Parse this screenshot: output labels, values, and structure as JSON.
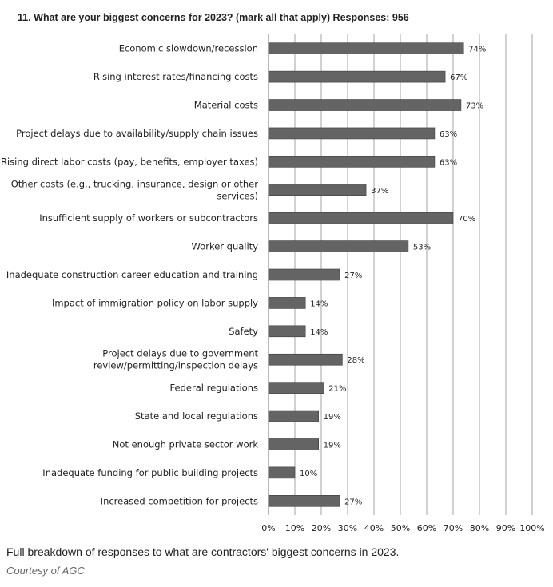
{
  "chart_data": {
    "type": "bar",
    "orientation": "horizontal",
    "title": "11.  What are your biggest concerns for 2023? (mark all that apply) Responses: 956",
    "categories": [
      [
        "Economic slowdown/recession"
      ],
      [
        "Rising interest rates/financing costs"
      ],
      [
        "Material costs"
      ],
      [
        "Project delays due to availability/supply chain issues"
      ],
      [
        "Rising direct labor costs (pay, benefits, employer taxes)"
      ],
      [
        "Other costs (e.g., trucking, insurance, design or other",
        "services)"
      ],
      [
        "Insufficient supply of workers or subcontractors"
      ],
      [
        "Worker quality"
      ],
      [
        "Inadequate construction career education and training"
      ],
      [
        "Impact of immigration policy on labor supply"
      ],
      [
        "Safety"
      ],
      [
        "Project delays due to government",
        "review/permitting/inspection delays"
      ],
      [
        "Federal regulations"
      ],
      [
        "State and local regulations"
      ],
      [
        "Not enough private sector work"
      ],
      [
        "Inadequate funding for public building projects"
      ],
      [
        "Increased competition for projects"
      ]
    ],
    "values": [
      74,
      67,
      73,
      63,
      63,
      37,
      70,
      53,
      27,
      14,
      14,
      28,
      21,
      19,
      19,
      10,
      27
    ],
    "data_labels": [
      "74%",
      "67%",
      "73%",
      "63%",
      "63%",
      "37%",
      "70%",
      "53%",
      "27%",
      "14%",
      "14%",
      "28%",
      "21%",
      "19%",
      "19%",
      "10%",
      "27%"
    ],
    "xlim": [
      0,
      100
    ],
    "xticks": [
      "0%",
      "10%",
      "20%",
      "30%",
      "40%",
      "50%",
      "60%",
      "70%",
      "80%",
      "90%",
      "100%"
    ],
    "grid": "vertical",
    "bar_color": "#646464"
  },
  "caption": "Full breakdown of responses to what are contractors' biggest concerns in 2023.",
  "credit": "Courtesy of AGC"
}
